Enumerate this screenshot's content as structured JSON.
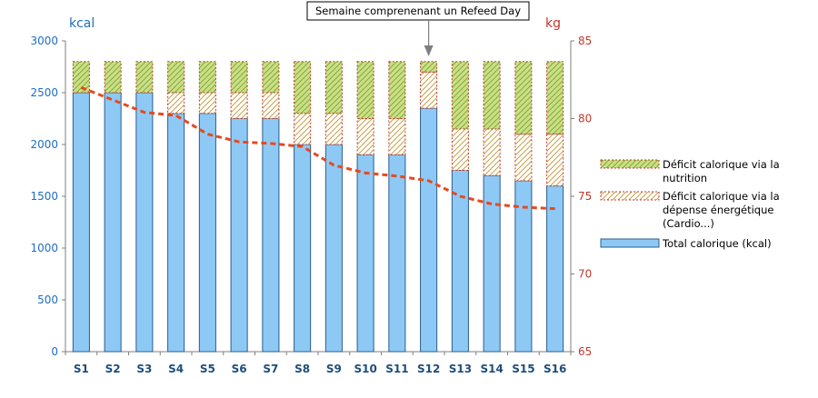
{
  "chart_data": {
    "type": "bar",
    "stacked": true,
    "categories": [
      "S1",
      "S2",
      "S3",
      "S4",
      "S5",
      "S6",
      "S7",
      "S8",
      "S9",
      "S10",
      "S11",
      "S12",
      "S13",
      "S14",
      "S15",
      "S16"
    ],
    "series": [
      {
        "name": "Total calorique (kcal)",
        "axis": "left",
        "color": "#8ec9f5",
        "values": [
          2500,
          2500,
          2500,
          2300,
          2300,
          2250,
          2250,
          2000,
          2000,
          1900,
          1900,
          2350,
          1750,
          1700,
          1650,
          1600
        ]
      },
      {
        "name": "Déficit calorique via la dépense énergétique (Cardio...)",
        "axis": "left",
        "color": "#ffffff",
        "pattern": "hatch-orange",
        "values": [
          0,
          0,
          0,
          200,
          200,
          250,
          250,
          300,
          300,
          350,
          350,
          350,
          400,
          450,
          450,
          500
        ]
      },
      {
        "name": "Déficit calorique via la nutrition",
        "axis": "left",
        "color": "#c9e08a",
        "pattern": "hatch-green",
        "values": [
          300,
          300,
          300,
          300,
          300,
          300,
          300,
          500,
          500,
          550,
          550,
          100,
          650,
          650,
          700,
          700
        ]
      }
    ],
    "line": {
      "axis": "right",
      "color": "#e8491d",
      "values": [
        82.0,
        81.2,
        80.4,
        80.2,
        79.0,
        78.5,
        78.4,
        78.2,
        77.0,
        76.5,
        76.3,
        76.0,
        75.0,
        74.5,
        74.3,
        74.2
      ]
    },
    "left_axis": {
      "label": "kcal",
      "ylim": [
        0,
        3000
      ],
      "ticks": [
        "0",
        "500",
        "1000",
        "1500",
        "2000",
        "2500",
        "3000"
      ],
      "color": "#1f6fbf"
    },
    "right_axis": {
      "label": "kg",
      "ylim": [
        65,
        85
      ],
      "ticks": [
        "65",
        "70",
        "75",
        "80",
        "85"
      ],
      "color": "#c0392b"
    },
    "annotation": {
      "text": "Semaine comprenenant un Refeed Day",
      "category": "S12"
    },
    "legend": {
      "placement": "right",
      "entries": [
        {
          "lines": [
            "Déficit calorique via la",
            "nutrition"
          ],
          "series": 2
        },
        {
          "lines": [
            "Déficit calorique via la",
            "dépense énergétique",
            "(Cardio...)"
          ],
          "series": 1
        },
        {
          "lines": [
            "Total calorique (kcal)"
          ],
          "series": 0
        }
      ]
    },
    "grid": false
  }
}
